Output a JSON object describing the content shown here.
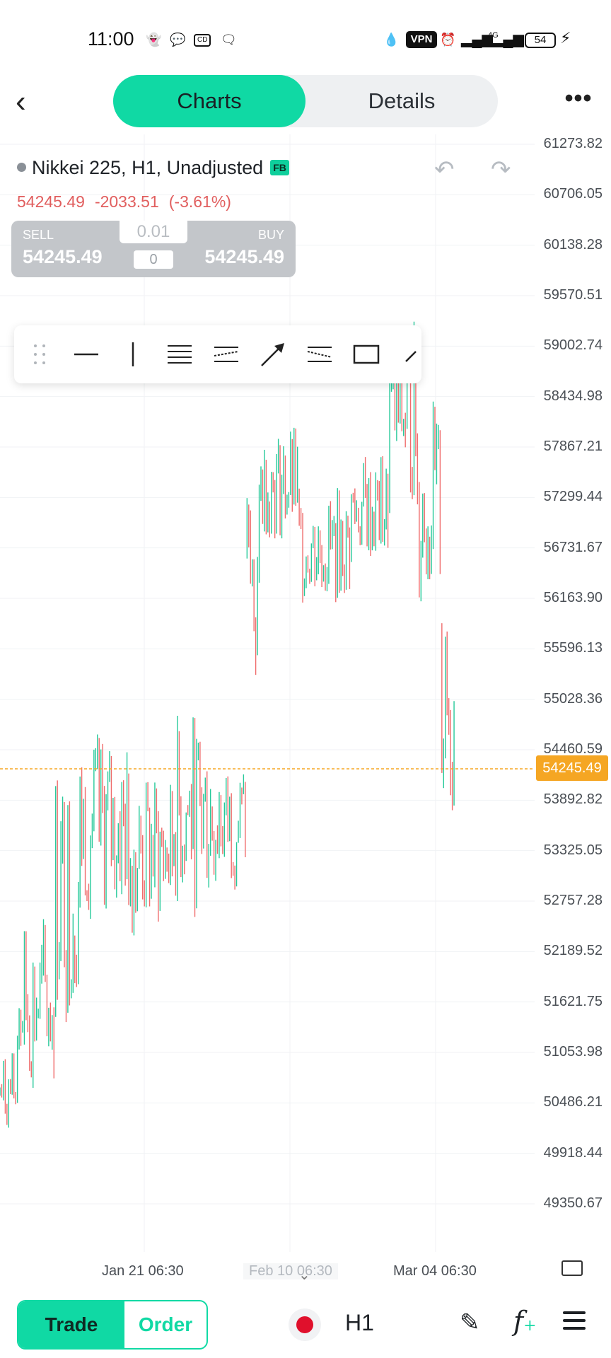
{
  "status_bar": {
    "time": "11:00",
    "icons": [
      "snapchat-icon",
      "chat-bubble-icon",
      "cd-icon",
      "messages-icon",
      "water-drop-icon",
      "vpn-badge",
      "alarm-icon",
      "signal-icon",
      "4g-signal-icon",
      "battery-icon",
      "charging-icon"
    ],
    "vpn": "VPN",
    "battery": "54",
    "network": "4G"
  },
  "header": {
    "tabs": [
      {
        "label": "Charts",
        "active": true
      },
      {
        "label": "Details",
        "active": false
      }
    ]
  },
  "instrument": {
    "title": "Nikkei 225, H1, Unadjusted",
    "badge": "FB",
    "price": "54245.49",
    "change": "-2033.51",
    "change_pct": "(-3.61%)"
  },
  "trade_panel": {
    "sell_label": "SELL",
    "sell_price": "54245.49",
    "buy_label": "BUY",
    "buy_price": "54245.49",
    "lot": "0.01",
    "spread": "0"
  },
  "drawing_tools": [
    "drag-handle-icon",
    "horizontal-line-icon",
    "vertical-line-icon",
    "parallel-channel-icon",
    "fib-channel-icon",
    "arrow-icon",
    "regression-channel-icon",
    "rectangle-icon",
    "trend-line-icon"
  ],
  "chart_data": {
    "type": "candlestick",
    "title": "Nikkei 225, H1, Unadjusted",
    "y_ticks": [
      "61273.82",
      "60706.05",
      "60138.28",
      "59570.51",
      "59002.74",
      "58434.98",
      "57867.21",
      "57299.44",
      "56731.67",
      "56163.90",
      "55596.13",
      "55028.36",
      "54460.59",
      "53892.82",
      "53325.05",
      "52757.28",
      "52189.52",
      "51621.75",
      "51053.98",
      "50486.21",
      "49918.44",
      "49350.67"
    ],
    "ylim": [
      49350.67,
      61273.82
    ],
    "x_ticks": [
      "Jan 21 06:30",
      "Feb 10 06:30",
      "Mar 04 06:30"
    ],
    "current_price": "54245.49",
    "colors": {
      "up": "#26c99a",
      "down": "#ef6b6b",
      "price_line": "#f5a623"
    },
    "grid": true,
    "segments": [
      {
        "n": 10,
        "lo": 50200,
        "hi": 51000
      },
      {
        "n": 22,
        "lo": 50700,
        "hi": 52500
      },
      {
        "n": 14,
        "lo": 51600,
        "hi": 54200
      },
      {
        "n": 28,
        "lo": 52700,
        "hi": 54500
      },
      {
        "n": 26,
        "lo": 52500,
        "hi": 54100
      },
      {
        "n": 28,
        "lo": 52800,
        "hi": 54700
      },
      {
        "n": 14,
        "lo": 53000,
        "hi": 54300
      },
      {
        "n": 8,
        "lo": 55000,
        "hi": 57500
      },
      {
        "n": 22,
        "lo": 56900,
        "hi": 58000
      },
      {
        "n": 30,
        "lo": 56200,
        "hi": 57300
      },
      {
        "n": 22,
        "lo": 56600,
        "hi": 57700
      },
      {
        "n": 16,
        "lo": 57300,
        "hi": 59200
      },
      {
        "n": 14,
        "lo": 56200,
        "hi": 58200
      },
      {
        "n": 8,
        "lo": 53800,
        "hi": 55800
      }
    ]
  },
  "bottom_bar": {
    "trade_label": "Trade",
    "order_label": "Order",
    "timeframe": "H1"
  }
}
